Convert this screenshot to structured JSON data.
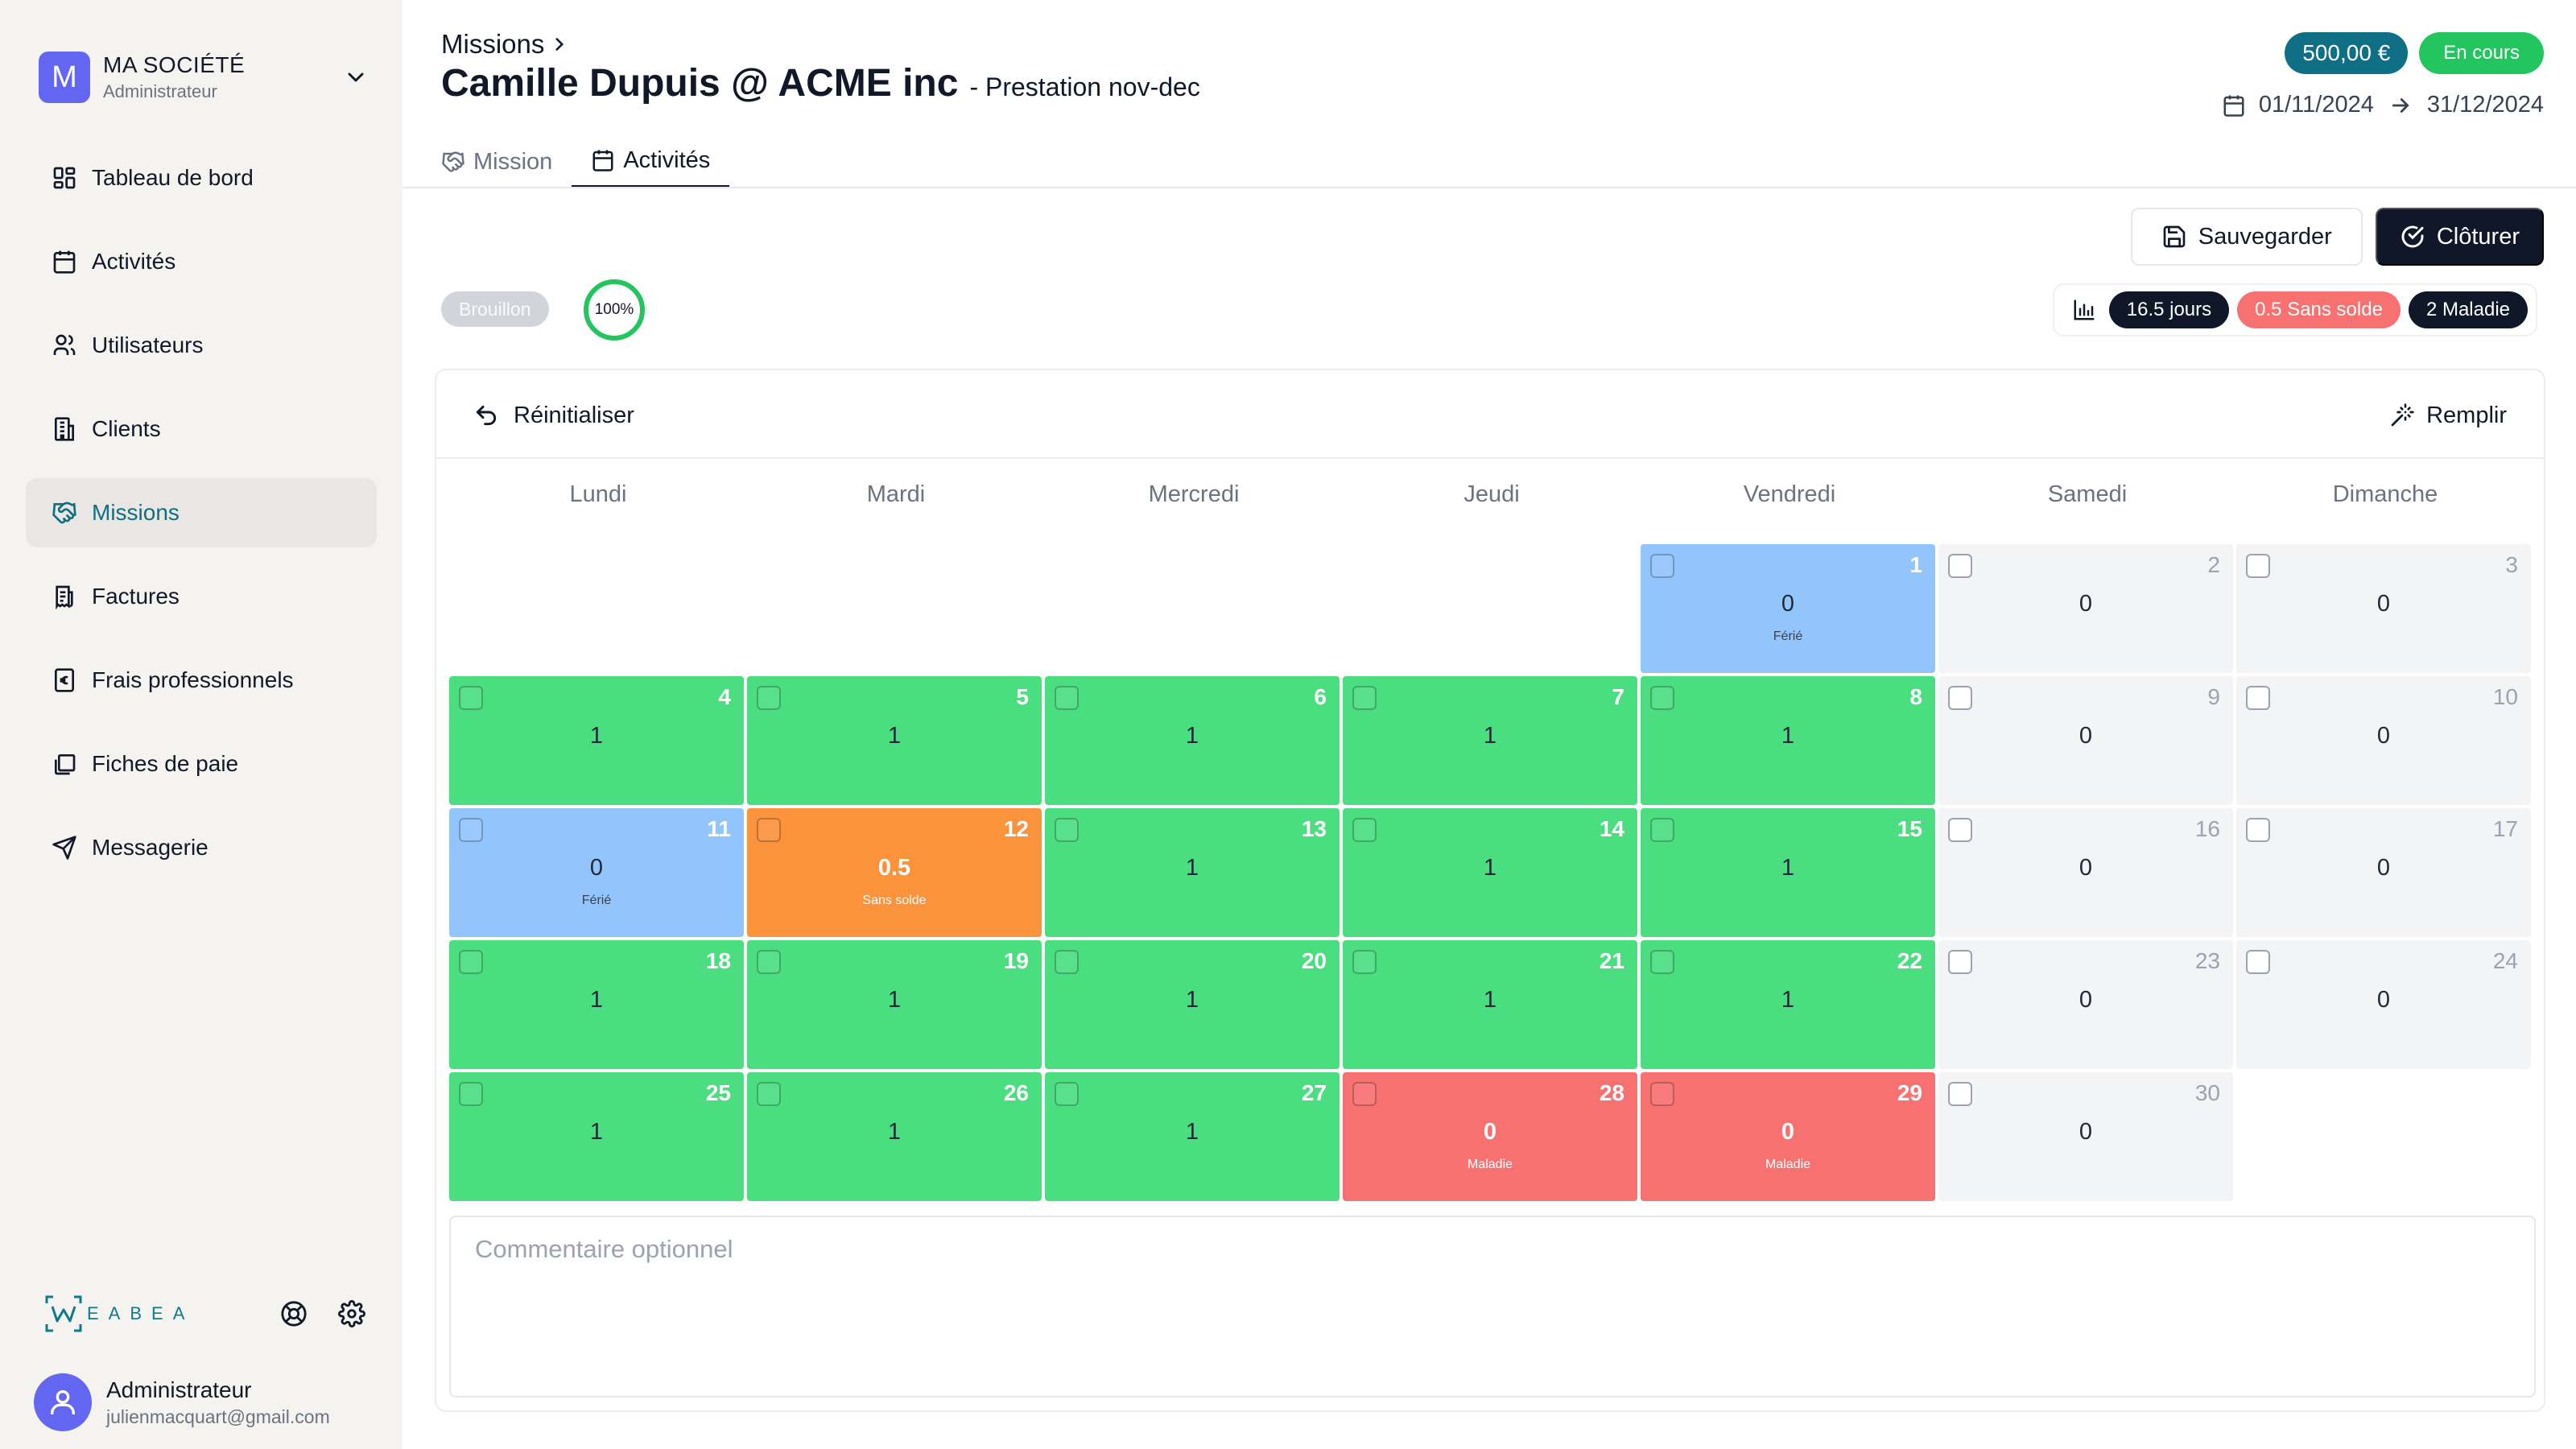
{
  "sidebar": {
    "company": {
      "initial": "M",
      "name": "MA SOCIÉTÉ",
      "role": "Administrateur"
    },
    "nav": [
      {
        "id": "dashboard",
        "label": "Tableau de bord",
        "icon": "dashboard-icon"
      },
      {
        "id": "activities",
        "label": "Activités",
        "icon": "calendar-icon"
      },
      {
        "id": "users",
        "label": "Utilisateurs",
        "icon": "users-icon"
      },
      {
        "id": "clients",
        "label": "Clients",
        "icon": "building-icon"
      },
      {
        "id": "missions",
        "label": "Missions",
        "icon": "handshake-icon",
        "active": true
      },
      {
        "id": "invoices",
        "label": "Factures",
        "icon": "receipt-icon"
      },
      {
        "id": "expenses",
        "label": "Frais professionnels",
        "icon": "euro-receipt-icon"
      },
      {
        "id": "payslips",
        "label": "Fiches de paie",
        "icon": "files-icon"
      },
      {
        "id": "messaging",
        "label": "Messagerie",
        "icon": "send-icon"
      }
    ],
    "brand": {
      "text": "EABEA"
    },
    "user": {
      "name": "Administrateur",
      "email": "julienmacquart@gmail.com"
    }
  },
  "header": {
    "breadcrumb": "Missions",
    "title": "Camille Dupuis @ ACME inc",
    "subtitle": "- Prestation nov-dec",
    "amount": "500,00 €",
    "status": "En cours",
    "start_date": "01/11/2024",
    "end_date": "31/12/2024"
  },
  "tabs": [
    {
      "id": "mission",
      "label": "Mission",
      "icon": "handshake-icon",
      "active": false
    },
    {
      "id": "activities",
      "label": "Activités",
      "icon": "calendar-icon",
      "active": true
    }
  ],
  "actions": {
    "save_label": "Sauvegarder",
    "close_label": "Clôturer"
  },
  "activity": {
    "draft_label": "Brouillon",
    "progress": 100,
    "progress_label": "100%",
    "stats": {
      "days": "16.5 jours",
      "unpaid": "0.5 Sans solde",
      "sick": "2 Maladie"
    }
  },
  "calendar": {
    "reset_label": "Réinitialiser",
    "fill_label": "Remplir",
    "weekdays": [
      "Lundi",
      "Mardi",
      "Mercredi",
      "Jeudi",
      "Vendredi",
      "Samedi",
      "Dimanche"
    ],
    "leading_empty": 4,
    "days": [
      {
        "day": "1",
        "value": "0",
        "type": "holiday",
        "label": "Férié"
      },
      {
        "day": "2",
        "value": "0",
        "type": "weekend",
        "label": ""
      },
      {
        "day": "3",
        "value": "0",
        "type": "weekend",
        "label": ""
      },
      {
        "day": "4",
        "value": "1",
        "type": "work",
        "label": ""
      },
      {
        "day": "5",
        "value": "1",
        "type": "work",
        "label": ""
      },
      {
        "day": "6",
        "value": "1",
        "type": "work",
        "label": ""
      },
      {
        "day": "7",
        "value": "1",
        "type": "work",
        "label": ""
      },
      {
        "day": "8",
        "value": "1",
        "type": "work",
        "label": ""
      },
      {
        "day": "9",
        "value": "0",
        "type": "weekend",
        "label": ""
      },
      {
        "day": "10",
        "value": "0",
        "type": "weekend",
        "label": ""
      },
      {
        "day": "11",
        "value": "0",
        "type": "holiday",
        "label": "Férié"
      },
      {
        "day": "12",
        "value": "0.5",
        "type": "unpaid",
        "label": "Sans solde"
      },
      {
        "day": "13",
        "value": "1",
        "type": "work",
        "label": ""
      },
      {
        "day": "14",
        "value": "1",
        "type": "work",
        "label": ""
      },
      {
        "day": "15",
        "value": "1",
        "type": "work",
        "label": ""
      },
      {
        "day": "16",
        "value": "0",
        "type": "weekend",
        "label": ""
      },
      {
        "day": "17",
        "value": "0",
        "type": "weekend",
        "label": ""
      },
      {
        "day": "18",
        "value": "1",
        "type": "work",
        "label": ""
      },
      {
        "day": "19",
        "value": "1",
        "type": "work",
        "label": ""
      },
      {
        "day": "20",
        "value": "1",
        "type": "work",
        "label": ""
      },
      {
        "day": "21",
        "value": "1",
        "type": "work",
        "label": ""
      },
      {
        "day": "22",
        "value": "1",
        "type": "work",
        "label": ""
      },
      {
        "day": "23",
        "value": "0",
        "type": "weekend",
        "label": ""
      },
      {
        "day": "24",
        "value": "0",
        "type": "weekend",
        "label": ""
      },
      {
        "day": "25",
        "value": "1",
        "type": "work",
        "label": ""
      },
      {
        "day": "26",
        "value": "1",
        "type": "work",
        "label": ""
      },
      {
        "day": "27",
        "value": "1",
        "type": "work",
        "label": ""
      },
      {
        "day": "28",
        "value": "0",
        "type": "sick",
        "label": "Maladie"
      },
      {
        "day": "29",
        "value": "0",
        "type": "sick",
        "label": "Maladie"
      },
      {
        "day": "30",
        "value": "0",
        "type": "weekend",
        "label": ""
      }
    ],
    "comment_placeholder": "Commentaire optionnel"
  },
  "colors": {
    "accent": "#0f6e80",
    "amount_badge": "#0e6f85",
    "status_green": "#22c55e",
    "work": "#4ade80",
    "holiday": "#93c5fd",
    "unpaid": "#fb923c",
    "sick": "#f87171",
    "weekend": "#f3f4f6"
  }
}
